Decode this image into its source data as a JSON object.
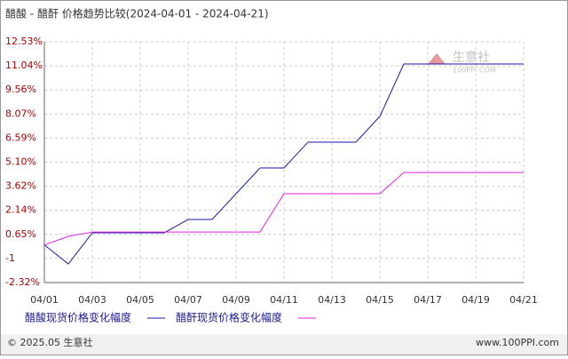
{
  "chart_data": {
    "type": "line",
    "title": "醋酸 - 醋酐 价格趋势比较(2024-04-01 - 2024-04-21)",
    "categories": [
      "04/01",
      null,
      "04/03",
      null,
      "04/05",
      null,
      "04/07",
      null,
      "04/09",
      null,
      "04/11",
      null,
      "04/13",
      null,
      "04/15",
      null,
      "04/17",
      null,
      "04/19",
      null,
      "04/21"
    ],
    "series": [
      {
        "name": "醋酸现货价格变化幅度",
        "color": "#1a1aa0",
        "values": [
          0,
          -1.17,
          0.75,
          0.75,
          0.75,
          0.75,
          1.57,
          1.57,
          3.16,
          4.75,
          4.75,
          6.34,
          6.34,
          6.34,
          7.93,
          11.16,
          11.16,
          11.16,
          11.16,
          11.16,
          11.16
        ]
      },
      {
        "name": "醋酐现货价格变化幅度",
        "color": "#e020e0",
        "values": [
          0,
          0.53,
          0.8,
          0.8,
          0.8,
          0.8,
          0.8,
          0.8,
          0.8,
          0.8,
          3.16,
          3.16,
          3.16,
          3.16,
          3.16,
          4.47,
          4.47,
          4.47,
          4.47,
          4.47,
          4.47
        ]
      }
    ],
    "ylim": [
      -2.32,
      12.53
    ],
    "yticks": [
      {
        "value": 12.53,
        "label": "12.53%"
      },
      {
        "value": 11.04,
        "label": "11.04%"
      },
      {
        "value": 9.56,
        "label": "9.56%"
      },
      {
        "value": 8.07,
        "label": "8.07%"
      },
      {
        "value": 6.59,
        "label": "6.59%"
      },
      {
        "value": 5.1,
        "label": "5.10%"
      },
      {
        "value": 3.62,
        "label": "3.62%"
      },
      {
        "value": 2.14,
        "label": "2.14%"
      },
      {
        "value": 0.65,
        "label": "0.65%"
      },
      {
        "value": -0.83,
        "label": "-1"
      },
      {
        "value": -2.32,
        "label": "-2.32%"
      }
    ],
    "grid": true,
    "watermark": {
      "name": "生意社",
      "site": "100PPI.COM"
    },
    "footer": {
      "copyright": "© 2025.05 生意社",
      "site": "www.100PPI.com"
    }
  }
}
